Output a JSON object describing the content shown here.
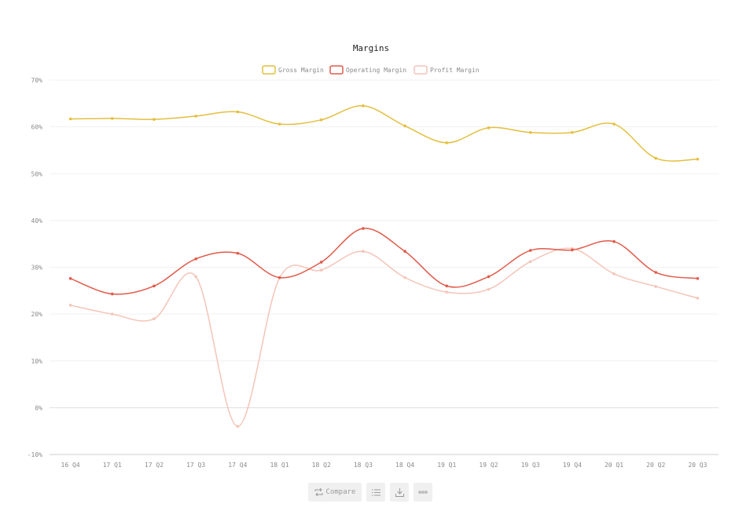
{
  "chart_data": {
    "type": "line",
    "title": "Margins",
    "categories": [
      "16 Q4",
      "17 Q1",
      "17 Q2",
      "17 Q3",
      "17 Q4",
      "18 Q1",
      "18 Q2",
      "18 Q3",
      "18 Q4",
      "19 Q1",
      "19 Q2",
      "19 Q3",
      "19 Q4",
      "20 Q1",
      "20 Q2",
      "20 Q3"
    ],
    "series": [
      {
        "name": "Gross Margin",
        "color": "#e3bf3f",
        "values": [
          61.7,
          61.8,
          61.6,
          62.3,
          63.2,
          60.6,
          61.5,
          64.5,
          60.2,
          56.6,
          59.8,
          58.8,
          58.8,
          60.6,
          53.3,
          53.1
        ]
      },
      {
        "name": "Operating Margin",
        "color": "#e05a4a",
        "values": [
          27.6,
          24.3,
          26.0,
          31.8,
          33.0,
          27.8,
          31.1,
          38.3,
          33.4,
          26.0,
          28.0,
          33.6,
          33.7,
          35.5,
          28.9,
          27.6
        ]
      },
      {
        "name": "Profit Margin",
        "color": "#f4c4b8",
        "values": [
          21.9,
          20.0,
          19.0,
          28.0,
          -4.0,
          27.7,
          29.4,
          33.4,
          27.8,
          24.7,
          25.3,
          31.2,
          34.0,
          28.6,
          25.9,
          23.4
        ]
      }
    ],
    "ylim": [
      -10,
      70
    ],
    "yticks": [
      "-10%",
      "0%",
      "10%",
      "20%",
      "30%",
      "40%",
      "50%",
      "60%",
      "70%"
    ],
    "ytick_values": [
      -10,
      0,
      10,
      20,
      30,
      40,
      50,
      60,
      70
    ],
    "legend_position": "top-center",
    "grid": true
  },
  "toolbar": {
    "compare_label": "Compare",
    "icons": [
      "compare-icon",
      "list-icon",
      "download-icon",
      "more-icon"
    ]
  }
}
